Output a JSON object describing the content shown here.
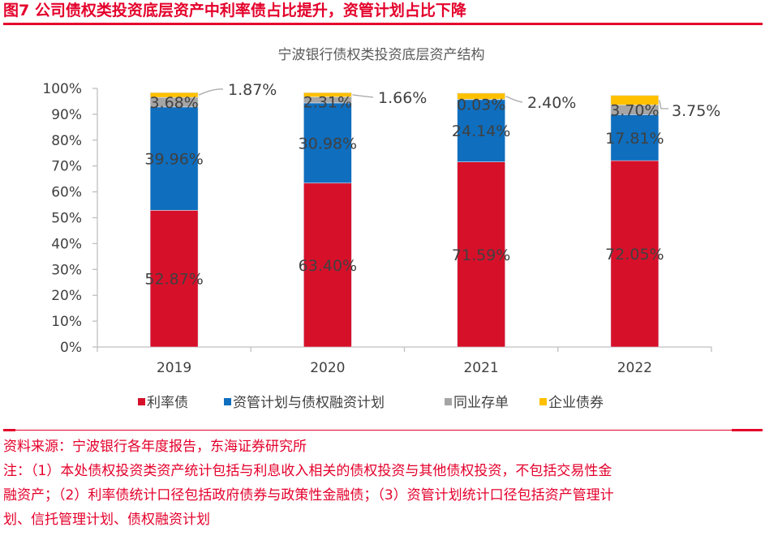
{
  "figure": {
    "title": "图7  公司债权类投资底层资产中利率债占比提升，资管计划占比下降",
    "source": "资料来源：宁波银行各年度报告，东海证券研究所",
    "notes_lines": [
      "注：（1）本处债权投资类资产统计包括与利息收入相关的债权投资与其他债权投资，不包括交易性金",
      "融资产；（2）利率债统计口径包括政府债券与政策性金融债；（3）资管计划统计口径包括资产管理计",
      "划、信托管理计划、债权融资计划"
    ]
  },
  "colors": {
    "accent": "#e4002b",
    "series": [
      "#d7102a",
      "#0f6ebe",
      "#a5a5a5",
      "#ffc000"
    ],
    "axis": "#bfbfbf",
    "text": "#404040"
  },
  "chart_data": {
    "type": "bar",
    "stacked": true,
    "title": "宁波银行债权类投资底层资产结构",
    "xlabel": "",
    "ylabel": "",
    "categories": [
      "2019",
      "2020",
      "2021",
      "2022"
    ],
    "ylim": [
      0,
      100
    ],
    "yticks": [
      "0%",
      "10%",
      "20%",
      "30%",
      "40%",
      "50%",
      "60%",
      "70%",
      "80%",
      "90%",
      "100%"
    ],
    "grid": false,
    "legend_position": "bottom",
    "series": [
      {
        "name": "利率债",
        "values": [
          52.87,
          63.4,
          71.59,
          72.05
        ],
        "labels": [
          "52.87%",
          "63.40%",
          "71.59%",
          "72.05%"
        ]
      },
      {
        "name": "资管计划与债权融资计划",
        "values": [
          39.96,
          30.98,
          24.14,
          17.81
        ],
        "labels": [
          "39.96%",
          "30.98%",
          "24.14%",
          "17.81%"
        ]
      },
      {
        "name": "同业存单",
        "values": [
          3.68,
          2.31,
          0.03,
          3.7
        ],
        "labels": [
          "3.68%",
          "2.31%",
          "0.03%",
          "3.70%"
        ]
      },
      {
        "name": "企业债券",
        "values": [
          1.87,
          1.66,
          2.4,
          3.75
        ],
        "labels": [
          "1.87%",
          "1.66%",
          "2.40%",
          "3.75%"
        ]
      }
    ]
  }
}
